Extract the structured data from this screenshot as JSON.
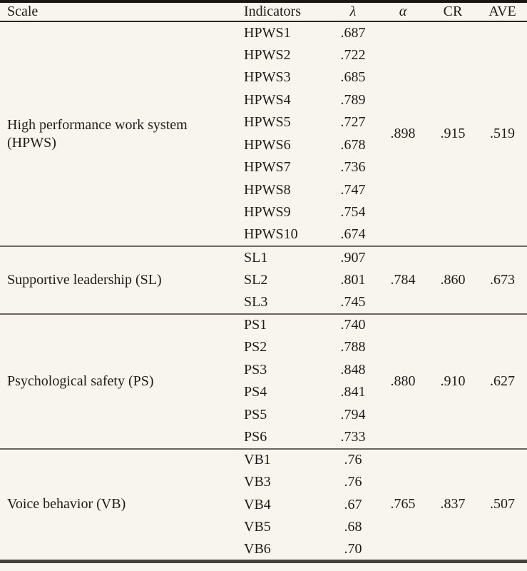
{
  "theme": {
    "background": "#f8f4ee",
    "text": "#1f1c19",
    "rule_top": "#191613",
    "rule_header": "#2b2723",
    "rule_section": "#6a645d",
    "rule_bottom": "#45423e"
  },
  "table": {
    "columns": [
      "Scale",
      "Indicators",
      "λ",
      "α",
      "CR",
      "AVE"
    ],
    "sections": [
      {
        "scale": "High performance work system (HPWS)",
        "alpha": ".898",
        "cr": ".915",
        "ave": ".519",
        "rows": [
          {
            "indicator": "HPWS1",
            "lambda": ".687"
          },
          {
            "indicator": "HPWS2",
            "lambda": ".722"
          },
          {
            "indicator": "HPWS3",
            "lambda": ".685"
          },
          {
            "indicator": "HPWS4",
            "lambda": ".789"
          },
          {
            "indicator": "HPWS5",
            "lambda": ".727"
          },
          {
            "indicator": "HPWS6",
            "lambda": ".678"
          },
          {
            "indicator": "HPWS7",
            "lambda": ".736"
          },
          {
            "indicator": "HPWS8",
            "lambda": ".747"
          },
          {
            "indicator": "HPWS9",
            "lambda": ".754"
          },
          {
            "indicator": "HPWS10",
            "lambda": ".674"
          }
        ]
      },
      {
        "scale": "Supportive leadership (SL)",
        "alpha": ".784",
        "cr": ".860",
        "ave": ".673",
        "rows": [
          {
            "indicator": "SL1",
            "lambda": ".907"
          },
          {
            "indicator": "SL2",
            "lambda": ".801"
          },
          {
            "indicator": "SL3",
            "lambda": ".745"
          }
        ]
      },
      {
        "scale": "Psychological safety (PS)",
        "alpha": ".880",
        "cr": ".910",
        "ave": ".627",
        "rows": [
          {
            "indicator": "PS1",
            "lambda": ".740"
          },
          {
            "indicator": "PS2",
            "lambda": ".788"
          },
          {
            "indicator": "PS3",
            "lambda": ".848"
          },
          {
            "indicator": "PS4",
            "lambda": ".841"
          },
          {
            "indicator": "PS5",
            "lambda": ".794"
          },
          {
            "indicator": "PS6",
            "lambda": ".733"
          }
        ]
      },
      {
        "scale": "Voice behavior (VB)",
        "alpha": ".765",
        "cr": ".837",
        "ave": ".507",
        "rows": [
          {
            "indicator": "VB1",
            "lambda": ".76"
          },
          {
            "indicator": "VB3",
            "lambda": ".76"
          },
          {
            "indicator": "VB4",
            "lambda": ".67"
          },
          {
            "indicator": "VB5",
            "lambda": ".68"
          },
          {
            "indicator": "VB6",
            "lambda": ".70"
          }
        ]
      }
    ]
  }
}
